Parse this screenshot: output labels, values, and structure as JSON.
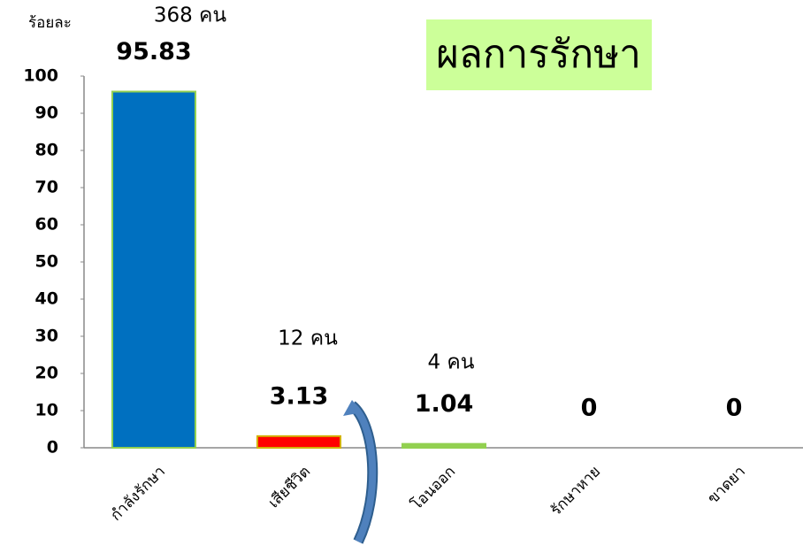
{
  "chart_data": {
    "type": "bar",
    "title": "ผลการรักษา",
    "ylabel": "ร้อยละ",
    "categories": [
      "กำลังรักษา",
      "เสียชีวิต",
      "โอนออก",
      "รักษาหาย",
      "ขาดยา"
    ],
    "values": [
      95.83,
      3.13,
      1.04,
      0,
      0
    ],
    "colors": [
      "#0070c0",
      "#ff0000",
      "#92d050",
      "#92d050",
      "#92d050"
    ],
    "edgecolors": [
      "#92d050",
      "#d4b000",
      "#92d050",
      "#92d050",
      "#92d050"
    ],
    "annotations": [
      "368 คน",
      "12 คน",
      "4 คน"
    ],
    "ylim": [
      0,
      100
    ],
    "yticks": [
      0,
      10,
      20,
      30,
      40,
      50,
      60,
      70,
      80,
      90,
      100
    ],
    "grid": false
  }
}
